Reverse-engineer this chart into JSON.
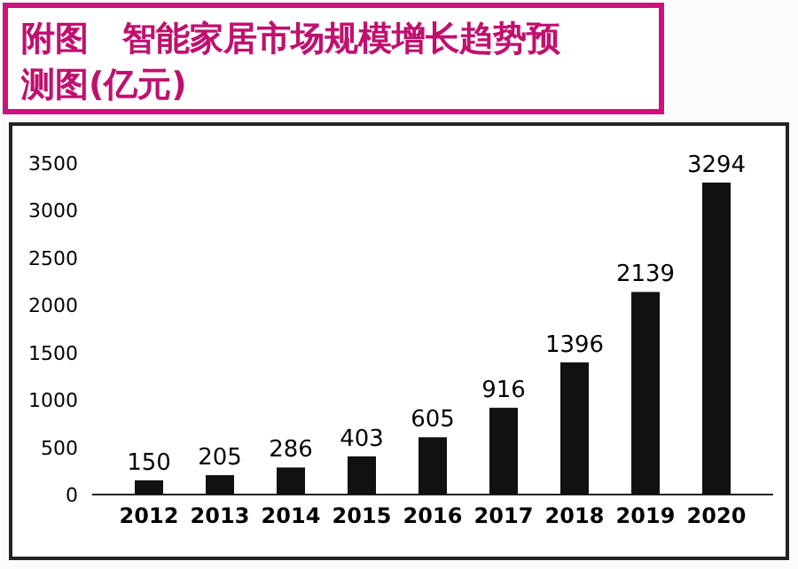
{
  "chart_data": {
    "type": "bar",
    "title": "附图　智能家居市场规模增长趋势预测图(亿元)",
    "categories": [
      "2012",
      "2013",
      "2014",
      "2015",
      "2016",
      "2017",
      "2018",
      "2019",
      "2020"
    ],
    "values": [
      150,
      205,
      286,
      403,
      605,
      916,
      1396,
      2139,
      3294
    ],
    "color": "#111111",
    "data_labels": true,
    "ylim": [
      0,
      3500
    ],
    "yticks": [
      0,
      500,
      1000,
      1500,
      2000,
      2500,
      3000,
      3500
    ]
  }
}
